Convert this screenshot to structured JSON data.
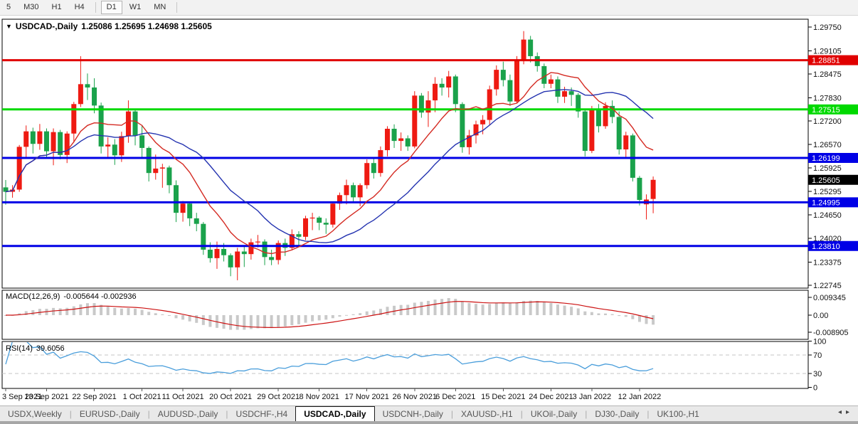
{
  "toolbar": {
    "groups": [
      [
        "5",
        "M30",
        "H1",
        "H4"
      ],
      [
        "D1",
        "W1",
        "MN"
      ]
    ],
    "active": "D1"
  },
  "chart": {
    "menu_arrow": "▼",
    "symbol_label": "USDCAD-,Daily",
    "ohlc_text": "1.25086 1.25695 1.24698 1.25605"
  },
  "indicators": {
    "macd": {
      "name": "MACD(12,26,9)",
      "values": "-0.005644 -0.002936",
      "params": [
        12,
        26,
        9
      ],
      "axis": [
        {
          "v": 0.009345,
          "label": "0.009345"
        },
        {
          "v": 0.0,
          "label": "0.00"
        },
        {
          "v": -0.008905,
          "label": "-0.008905"
        }
      ]
    },
    "rsi": {
      "name": "RSI(14)",
      "value": "39.6056",
      "period": 14,
      "levels": [
        70,
        30
      ],
      "axis": [
        {
          "v": 100,
          "label": "100"
        },
        {
          "v": 70,
          "label": "70"
        },
        {
          "v": 30,
          "label": "30"
        },
        {
          "v": 0,
          "label": "0"
        }
      ]
    }
  },
  "colors": {
    "bull": "#ee1a12",
    "bear": "#1aa24b",
    "hline_red": "#e00000",
    "hline_green": "#00d900",
    "hline_blue": "#0000e6",
    "ma_fast": "#d42a22",
    "ma_slow": "#2433b0",
    "macd_hist": "#c9c9c9",
    "macd_signal": "#cc1111",
    "rsi_line": "#4a9edb",
    "rsi_level": "#c6c6c6",
    "current_badge": "#000000",
    "axis_text": "#111111"
  },
  "chart_data": {
    "type": "candlestick",
    "symbol": "USDCAD-",
    "timeframe": "Daily",
    "header_ohlc": {
      "open": "1.25086",
      "high": "1.25695",
      "low": "1.24698",
      "close": "1.25605"
    },
    "price_axis_ticks": [
      "1.29750",
      "1.29105",
      "1.28475",
      "1.27830",
      "1.27200",
      "1.26570",
      "1.25925",
      "1.25295",
      "1.24650",
      "1.24020",
      "1.23375",
      "1.22745"
    ],
    "horizontal_lines": [
      {
        "price": 1.28851,
        "label": "1.28851",
        "color": "hline_red"
      },
      {
        "price": 1.27515,
        "label": "1.27515",
        "color": "hline_green"
      },
      {
        "price": 1.26199,
        "label": "1.26199",
        "color": "hline_blue"
      },
      {
        "price": 1.24995,
        "label": "1.24995",
        "color": "hline_blue"
      },
      {
        "price": 1.2381,
        "label": "1.23810",
        "color": "hline_blue"
      }
    ],
    "current_price": {
      "price": 1.25605,
      "label": "1.25605"
    },
    "moving_averages": [
      {
        "type": "sma",
        "period": 10,
        "color": "ma_fast"
      },
      {
        "type": "sma",
        "period": 20,
        "color": "ma_slow"
      }
    ],
    "date_ticks": [
      {
        "i": 0,
        "label": "3 Sep 2021"
      },
      {
        "i": 6,
        "label": "13 Sep 2021"
      },
      {
        "i": 13,
        "label": "22 Sep 2021"
      },
      {
        "i": 20,
        "label": "1 Oct 2021"
      },
      {
        "i": 26,
        "label": "11 Oct 2021"
      },
      {
        "i": 33,
        "label": "20 Oct 2021"
      },
      {
        "i": 40,
        "label": "29 Oct 2021"
      },
      {
        "i": 46,
        "label": "8 Nov 2021"
      },
      {
        "i": 53,
        "label": "17 Nov 2021"
      },
      {
        "i": 60,
        "label": "26 Nov 2021"
      },
      {
        "i": 66,
        "label": "6 Dec 2021"
      },
      {
        "i": 73,
        "label": "15 Dec 2021"
      },
      {
        "i": 80,
        "label": "24 Dec 2021"
      },
      {
        "i": 86,
        "label": "3 Jan 2022"
      },
      {
        "i": 93,
        "label": "12 Jan 2022"
      }
    ],
    "candles": [
      [
        "3 Sep 2021",
        1.254,
        1.256,
        1.2493,
        1.2528
      ],
      [
        "6 Sep 2021",
        1.2528,
        1.2546,
        1.2512,
        1.2534
      ],
      [
        "7 Sep 2021",
        1.2534,
        1.2655,
        1.2528,
        1.265
      ],
      [
        "8 Sep 2021",
        1.265,
        1.2708,
        1.2622,
        1.2692
      ],
      [
        "9 Sep 2021",
        1.2692,
        1.2702,
        1.2632,
        1.2658
      ],
      [
        "10 Sep 2021",
        1.2658,
        1.2712,
        1.2642,
        1.2692
      ],
      [
        "13 Sep 2021",
        1.2692,
        1.27,
        1.2622,
        1.2638
      ],
      [
        "14 Sep 2021",
        1.2638,
        1.27,
        1.26,
        1.269
      ],
      [
        "15 Sep 2021",
        1.269,
        1.2696,
        1.2616,
        1.2628
      ],
      [
        "16 Sep 2021",
        1.2628,
        1.2692,
        1.2606,
        1.2686
      ],
      [
        "17 Sep 2021",
        1.2686,
        1.2772,
        1.2662,
        1.2766
      ],
      [
        "20 Sep 2021",
        1.2766,
        1.2896,
        1.2758,
        1.282
      ],
      [
        "21 Sep 2021",
        1.282,
        1.2849,
        1.2777,
        1.2811
      ],
      [
        "22 Sep 2021",
        1.2811,
        1.2836,
        1.2741,
        1.2762
      ],
      [
        "23 Sep 2021",
        1.2762,
        1.277,
        1.2632,
        1.2651
      ],
      [
        "24 Sep 2021",
        1.2651,
        1.2676,
        1.2619,
        1.2656
      ],
      [
        "27 Sep 2021",
        1.2656,
        1.2671,
        1.2601,
        1.2627
      ],
      [
        "28 Sep 2021",
        1.2627,
        1.2691,
        1.2609,
        1.2679
      ],
      [
        "29 Sep 2021",
        1.2679,
        1.2776,
        1.2661,
        1.2746
      ],
      [
        "30 Sep 2021",
        1.2746,
        1.2753,
        1.2654,
        1.2681
      ],
      [
        "1 Oct 2021",
        1.2681,
        1.2709,
        1.2621,
        1.2647
      ],
      [
        "4 Oct 2021",
        1.2647,
        1.2651,
        1.2556,
        1.2579
      ],
      [
        "5 Oct 2021",
        1.2579,
        1.2629,
        1.2561,
        1.2591
      ],
      [
        "6 Oct 2021",
        1.2591,
        1.2604,
        1.2539,
        1.2594
      ],
      [
        "7 Oct 2021",
        1.2594,
        1.2599,
        1.2524,
        1.2546
      ],
      [
        "8 Oct 2021",
        1.2546,
        1.2559,
        1.2446,
        1.2471
      ],
      [
        "11 Oct 2021",
        1.2471,
        1.2503,
        1.2447,
        1.2496
      ],
      [
        "12 Oct 2021",
        1.2496,
        1.2501,
        1.2435,
        1.2456
      ],
      [
        "13 Oct 2021",
        1.2456,
        1.2471,
        1.2421,
        1.2441
      ],
      [
        "14 Oct 2021",
        1.2441,
        1.2446,
        1.2357,
        1.2371
      ],
      [
        "15 Oct 2021",
        1.2371,
        1.2391,
        1.2336,
        1.2348
      ],
      [
        "18 Oct 2021",
        1.2348,
        1.2393,
        1.2319,
        1.2373
      ],
      [
        "19 Oct 2021",
        1.2373,
        1.2389,
        1.2339,
        1.2356
      ],
      [
        "20 Oct 2021",
        1.2356,
        1.2361,
        1.2299,
        1.2323
      ],
      [
        "21 Oct 2021",
        1.2323,
        1.2376,
        1.2288,
        1.2366
      ],
      [
        "22 Oct 2021",
        1.2366,
        1.2381,
        1.2324,
        1.2359
      ],
      [
        "25 Oct 2021",
        1.2359,
        1.2401,
        1.2344,
        1.2391
      ],
      [
        "26 Oct 2021",
        1.2391,
        1.2411,
        1.2377,
        1.2393
      ],
      [
        "27 Oct 2021",
        1.2393,
        1.2399,
        1.2329,
        1.2351
      ],
      [
        "28 Oct 2021",
        1.2351,
        1.2371,
        1.2329,
        1.2343
      ],
      [
        "29 Oct 2021",
        1.2343,
        1.2396,
        1.2331,
        1.2389
      ],
      [
        "1 Nov 2021",
        1.2389,
        1.2401,
        1.2354,
        1.2376
      ],
      [
        "2 Nov 2021",
        1.2376,
        1.2426,
        1.2369,
        1.2413
      ],
      [
        "3 Nov 2021",
        1.2413,
        1.2421,
        1.2379,
        1.2406
      ],
      [
        "4 Nov 2021",
        1.2406,
        1.2463,
        1.2397,
        1.2456
      ],
      [
        "5 Nov 2021",
        1.2456,
        1.2471,
        1.2424,
        1.2458
      ],
      [
        "8 Nov 2021",
        1.2458,
        1.2462,
        1.2424,
        1.2444
      ],
      [
        "9 Nov 2021",
        1.2444,
        1.2456,
        1.2414,
        1.2439
      ],
      [
        "10 Nov 2021",
        1.2439,
        1.2501,
        1.2431,
        1.2496
      ],
      [
        "11 Nov 2021",
        1.2496,
        1.2526,
        1.2479,
        1.2519
      ],
      [
        "12 Nov 2021",
        1.2519,
        1.2561,
        1.2494,
        1.2546
      ],
      [
        "15 Nov 2021",
        1.2546,
        1.2553,
        1.2499,
        1.2513
      ],
      [
        "16 Nov 2021",
        1.2513,
        1.2551,
        1.2489,
        1.2546
      ],
      [
        "17 Nov 2021",
        1.2546,
        1.2616,
        1.2536,
        1.2606
      ],
      [
        "18 Nov 2021",
        1.2606,
        1.2621,
        1.2564,
        1.2579
      ],
      [
        "19 Nov 2021",
        1.2579,
        1.2651,
        1.2569,
        1.2641
      ],
      [
        "22 Nov 2021",
        1.2641,
        1.2706,
        1.2624,
        1.2699
      ],
      [
        "23 Nov 2021",
        1.2699,
        1.2711,
        1.2647,
        1.2666
      ],
      [
        "24 Nov 2021",
        1.2666,
        1.2689,
        1.2639,
        1.2673
      ],
      [
        "25 Nov 2021",
        1.2673,
        1.2681,
        1.2639,
        1.2651
      ],
      [
        "26 Nov 2021",
        1.2651,
        1.2801,
        1.2646,
        1.2789
      ],
      [
        "29 Nov 2021",
        1.2789,
        1.2796,
        1.2729,
        1.2743
      ],
      [
        "30 Nov 2021",
        1.2743,
        1.2801,
        1.2704,
        1.2776
      ],
      [
        "1 Dec 2021",
        1.2776,
        1.2839,
        1.2744,
        1.2821
      ],
      [
        "2 Dec 2021",
        1.2821,
        1.2836,
        1.2789,
        1.2811
      ],
      [
        "3 Dec 2021",
        1.2811,
        1.2856,
        1.2784,
        1.2841
      ],
      [
        "6 Dec 2021",
        1.2841,
        1.2846,
        1.2744,
        1.2766
      ],
      [
        "7 Dec 2021",
        1.2766,
        1.2771,
        1.2634,
        1.2649
      ],
      [
        "8 Dec 2021",
        1.2649,
        1.2696,
        1.2629,
        1.2681
      ],
      [
        "9 Dec 2021",
        1.2681,
        1.2721,
        1.2659,
        1.2711
      ],
      [
        "10 Dec 2021",
        1.2711,
        1.2736,
        1.2684,
        1.2723
      ],
      [
        "13 Dec 2021",
        1.2723,
        1.2816,
        1.2709,
        1.2806
      ],
      [
        "14 Dec 2021",
        1.2806,
        1.2871,
        1.2789,
        1.2859
      ],
      [
        "15 Dec 2021",
        1.2859,
        1.2881,
        1.2814,
        1.2831
      ],
      [
        "16 Dec 2021",
        1.2831,
        1.2846,
        1.2761,
        1.2773
      ],
      [
        "17 Dec 2021",
        1.2773,
        1.2896,
        1.2769,
        1.2886
      ],
      [
        "20 Dec 2021",
        1.2886,
        1.2964,
        1.2874,
        1.2941
      ],
      [
        "21 Dec 2021",
        1.2941,
        1.2951,
        1.2879,
        1.2896
      ],
      [
        "22 Dec 2021",
        1.2896,
        1.2906,
        1.2854,
        1.2869
      ],
      [
        "23 Dec 2021",
        1.2869,
        1.2876,
        1.2809,
        1.2821
      ],
      [
        "24 Dec 2021",
        1.2821,
        1.2846,
        1.2809,
        1.2833
      ],
      [
        "27 Dec 2021",
        1.2833,
        1.2841,
        1.2769,
        1.2786
      ],
      [
        "28 Dec 2021",
        1.2786,
        1.2813,
        1.2769,
        1.2801
      ],
      [
        "29 Dec 2021",
        1.2801,
        1.2811,
        1.2761,
        1.2791
      ],
      [
        "30 Dec 2021",
        1.2791,
        1.2796,
        1.2729,
        1.2746
      ],
      [
        "31 Dec 2021",
        1.2746,
        1.2751,
        1.2624,
        1.2639
      ],
      [
        "3 Jan 2022",
        1.2639,
        1.2761,
        1.2633,
        1.2751
      ],
      [
        "4 Jan 2022",
        1.2751,
        1.2766,
        1.2689,
        1.2706
      ],
      [
        "5 Jan 2022",
        1.2706,
        1.2771,
        1.2699,
        1.2761
      ],
      [
        "6 Jan 2022",
        1.2761,
        1.2776,
        1.2714,
        1.2731
      ],
      [
        "7 Jan 2022",
        1.2731,
        1.2746,
        1.2629,
        1.2643
      ],
      [
        "10 Jan 2022",
        1.2643,
        1.2691,
        1.2621,
        1.2681
      ],
      [
        "11 Jan 2022",
        1.2681,
        1.2686,
        1.2556,
        1.2566
      ],
      [
        "12 Jan 2022",
        1.2566,
        1.2571,
        1.2491,
        1.2506
      ],
      [
        "13 Jan 2022",
        1.2494,
        1.2521,
        1.2453,
        1.2507
      ],
      [
        "14 Jan 2022",
        1.25086,
        1.25695,
        1.24698,
        1.25605
      ]
    ]
  },
  "tabs": {
    "items": [
      "USDX,Weekly",
      "EURUSD-,Daily",
      "AUDUSD-,Daily",
      "USDCHF-,H4",
      "USDCAD-,Daily",
      "USDCNH-,Daily",
      "XAUUSD-,H1",
      "UKOil-,Daily",
      "DJ30-,Daily",
      "UK100-,H1"
    ],
    "active_index": 4,
    "scroll_left_icon": "◂",
    "scroll_right_icon": "▸"
  }
}
